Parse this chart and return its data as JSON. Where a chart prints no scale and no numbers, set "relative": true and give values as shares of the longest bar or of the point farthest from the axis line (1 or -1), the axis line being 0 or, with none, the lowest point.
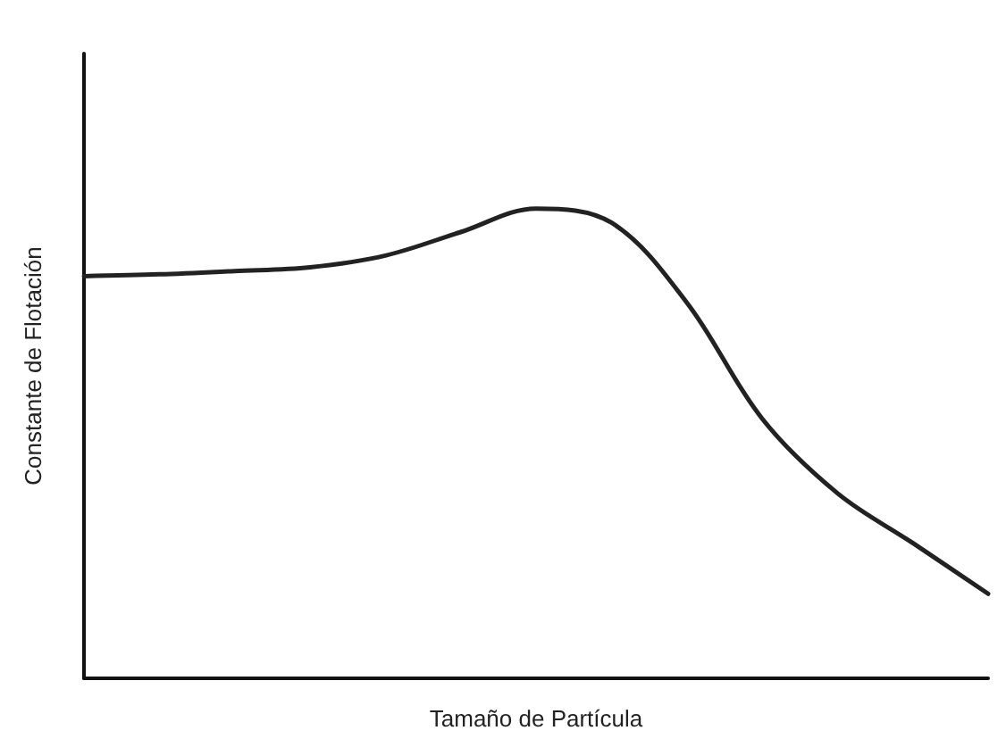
{
  "chart_data": {
    "type": "line",
    "relative": true,
    "xlabel": "Tamaño de Partícula",
    "ylabel": "Constante de Flotación",
    "categories": [
      null,
      null,
      null,
      null,
      null,
      null,
      null,
      null,
      null,
      null,
      null,
      null,
      null
    ],
    "series": [
      {
        "color": "#222222",
        "values": [
          0.856,
          0.86,
          0.867,
          0.875,
          0.9,
          0.95,
          1,
          0.97,
          0.8,
          0.553,
          0.394,
          0.288,
          0.18
        ]
      }
    ],
    "grid": false,
    "marker": "none",
    "line_style": "solid"
  }
}
